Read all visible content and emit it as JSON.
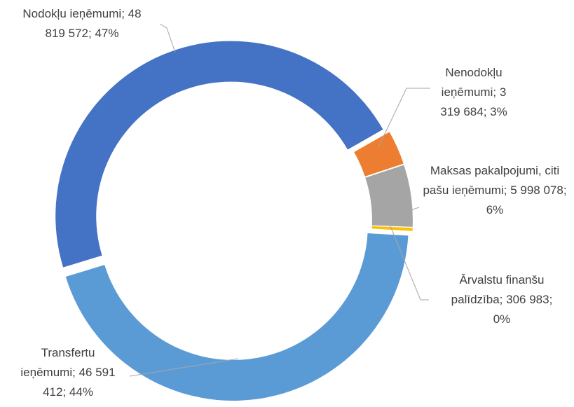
{
  "chart_data": {
    "type": "donut",
    "categories": [
      "Nodokļu ieņēmumi",
      "Nenodokļu ieņēmumi",
      "Maksas pakalpojumi, citi pašu ieņēmumi",
      "Ārvalstu finanšu palīdzība",
      "Transfertu ieņēmumi"
    ],
    "values": [
      48819572,
      3319684,
      5998078,
      306983,
      46591412
    ],
    "value_labels": [
      "48 819 572",
      "3 319 684",
      "5 998 078",
      "306 983",
      "46 591 412"
    ],
    "percents": [
      47,
      3,
      6,
      0,
      44
    ],
    "percent_labels": [
      "47%",
      "3%",
      "6%",
      "0%",
      "44%"
    ],
    "separator": ";",
    "colors": [
      "#4472c4",
      "#ed7d31",
      "#a5a5a5",
      "#ffc000",
      "#5b9bd5"
    ]
  }
}
